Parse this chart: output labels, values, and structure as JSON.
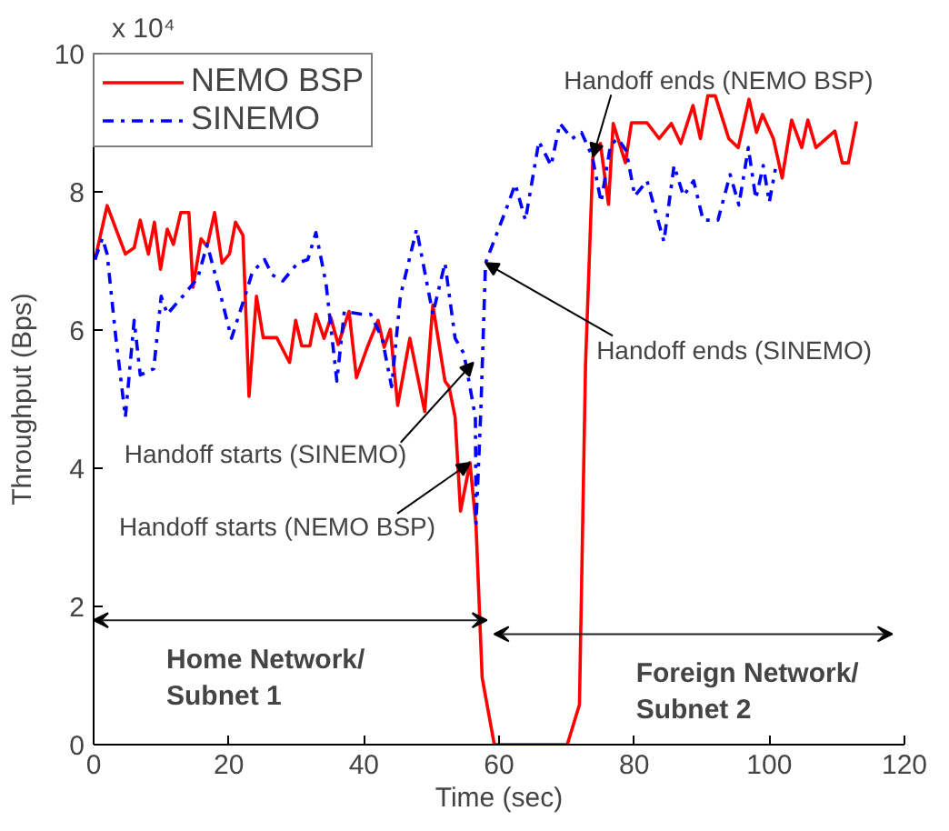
{
  "chart_data": {
    "type": "line",
    "xlabel": "Time (sec)",
    "ylabel": "Throughput (Bps)",
    "xlim": [
      0,
      120
    ],
    "xticks": [
      0,
      20,
      40,
      60,
      80,
      100,
      120
    ],
    "ylim": [
      0,
      10
    ],
    "yticks": [
      0,
      2,
      4,
      6,
      8,
      10
    ],
    "grid": false,
    "legend": "top left",
    "marker": "none",
    "series": [
      {
        "name": "NEMO BSP",
        "color": "#ff0000",
        "line_style": "solid",
        "x": [
          0.2,
          2,
          4.7,
          6,
          6.9,
          8.1,
          9,
          9.9,
          10.9,
          11.8,
          12.9,
          14.1,
          14.7,
          15.9,
          16.8,
          17.9,
          19,
          20.1,
          21,
          22.1,
          23,
          24.1,
          25.1,
          27.1,
          29,
          29.9,
          30.8,
          32,
          32.9,
          34.1,
          35.1,
          36.2,
          37.8,
          38.9,
          40.5,
          42.1,
          43,
          43.9,
          45,
          46.8,
          49,
          50.2,
          52,
          52.6,
          53.5,
          54.3,
          55.7,
          56.6,
          57.5,
          59.3,
          70.1,
          71.9,
          72.8,
          73.9,
          75,
          76.2,
          76.9,
          78.7,
          79.6,
          81.9,
          83.7,
          85.5,
          86.9,
          88.7,
          89.8,
          90.9,
          92,
          94,
          95.4,
          97,
          98.1,
          99,
          100.6,
          101.9,
          103.3,
          104.8,
          105.7,
          106.9,
          109.7,
          110.8,
          111.7,
          112.9
        ],
        "values": [
          7.02,
          7.8,
          7.1,
          7.19,
          7.59,
          7.1,
          7.56,
          6.88,
          7.46,
          7.24,
          7.7,
          7.7,
          6.62,
          7.32,
          7.21,
          7.7,
          6.97,
          7.1,
          7.56,
          7.37,
          5.04,
          6.49,
          5.89,
          5.89,
          5.53,
          6.14,
          5.77,
          5.77,
          6.23,
          5.88,
          6.18,
          5.79,
          6.27,
          5.31,
          5.75,
          6.14,
          5.75,
          6.01,
          4.91,
          5.88,
          4.82,
          6.36,
          5.26,
          5.18,
          4.74,
          3.38,
          4.08,
          3.16,
          0.97,
          0,
          0,
          0.58,
          5.5,
          8.51,
          8.7,
          7.82,
          8.99,
          8.42,
          9,
          9,
          8.77,
          8.99,
          8.7,
          9.25,
          8.77,
          9.39,
          9.39,
          8.77,
          8.64,
          9.34,
          8.86,
          9.12,
          8.77,
          8.2,
          9.04,
          8.64,
          9.04,
          8.64,
          8.88,
          8.42,
          8.42,
          9.02
        ]
      },
      {
        "name": "SINEMO",
        "color": "#0000ff",
        "line_style": "dashdot",
        "x": [
          0.2,
          1.3,
          2,
          3.3,
          4.7,
          6,
          6.9,
          8.9,
          10,
          10.9,
          13.2,
          15.4,
          16.8,
          18.6,
          20.4,
          22.4,
          23.5,
          25.3,
          26.4,
          28,
          30.2,
          31.7,
          32.9,
          34.4,
          36,
          37.1,
          39.6,
          41,
          42.7,
          44.1,
          45.4,
          47.8,
          50.2,
          52,
          53.5,
          54.8,
          56.5,
          56.6,
          57.3,
          58,
          61.1,
          62.4,
          63.9,
          65.9,
          67.7,
          69,
          70.8,
          72.2,
          73.8,
          75.1,
          76.5,
          77.6,
          78.8,
          80.1,
          81.9,
          84.4,
          85.9,
          87.3,
          88.8,
          90.2,
          92.4,
          94.2,
          95.5,
          96.9,
          98,
          99.1,
          100,
          100.9
        ],
        "values": [
          7.02,
          7.33,
          7.1,
          5.88,
          4.74,
          6.14,
          5.35,
          5.44,
          6.49,
          6.23,
          6.49,
          6.75,
          7.24,
          6.58,
          5.88,
          6.49,
          6.84,
          7.02,
          6.8,
          6.71,
          6.97,
          7.02,
          7.41,
          6.67,
          5.26,
          6.27,
          6.23,
          6.23,
          5.88,
          5.18,
          6.49,
          7.46,
          6.23,
          6.97,
          5.88,
          5.66,
          4.74,
          3.2,
          4.82,
          6.97,
          7.76,
          8.11,
          7.59,
          8.73,
          8.38,
          8.99,
          8.77,
          8.86,
          8.51,
          7.85,
          8.68,
          8.77,
          8.6,
          7.94,
          8.16,
          7.28,
          8.38,
          7.94,
          8.16,
          7.59,
          7.59,
          8.25,
          7.81,
          8.64,
          7.9,
          8.38,
          7.85,
          8.33
        ]
      }
    ],
    "annotations": [
      "x 10⁴",
      {
        "text": "Handoff ends (NEMO BSP)",
        "x": 73.9,
        "y": 8.51
      },
      {
        "text": "Handoff ends (SINEMO)",
        "x": 58,
        "y": 6.97
      },
      {
        "text": "Handoff starts (SINEMO)",
        "x": 56.2,
        "y": 5.53
      },
      {
        "text": "Handoff starts (NEMO BSP)",
        "x": 55.7,
        "y": 4.08
      },
      "Home Network/\nSubnet 1",
      "Foreign Network/\nSubnet 2"
    ]
  }
}
